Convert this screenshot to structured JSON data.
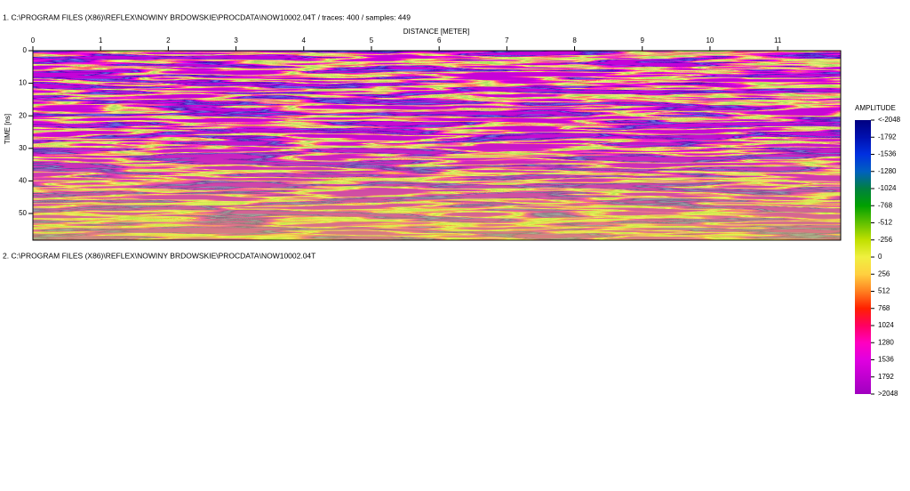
{
  "panels": [
    {
      "header": "1. C:\\PROGRAM FILES (X86)\\REFLEX\\NOWINY BRDOWSKIE\\PROCDATA\\NOW10002.04T / traces: 400 / samples: 449"
    },
    {
      "header": "2. C:\\PROGRAM FILES (X86)\\REFLEX\\NOWINY BRDOWSKIE\\PROCDATA\\NOW10002.04T"
    }
  ],
  "chart_data": {
    "type": "heatmap",
    "xlabel": "DISTANCE [METER]",
    "ylabel": "TIME [ns]",
    "xlim": [
      0,
      11.93
    ],
    "xticks": [
      0,
      1,
      2,
      3,
      4,
      5,
      6,
      7,
      8,
      9,
      10,
      11
    ],
    "ylim": [
      0,
      58.2
    ],
    "yticks": [
      0,
      10,
      20,
      30,
      40,
      50
    ],
    "colorbar": {
      "title": "AMPLITUDE",
      "ticks": [
        {
          "value": -2048,
          "label": "<-2048"
        },
        -1792,
        -1536,
        -1280,
        -1024,
        -768,
        -512,
        -256,
        0,
        256,
        512,
        768,
        1024,
        1280,
        1536,
        1792,
        {
          "value": 2048,
          "label": ">2048"
        }
      ],
      "colors": [
        "#000080",
        "#0010b0",
        "#0030e0",
        "#0060c0",
        "#008040",
        "#00a000",
        "#60c000",
        "#c0e000",
        "#f0f040",
        "#ffd040",
        "#ff8020",
        "#ff2000",
        "#ff0060",
        "#ff00c0",
        "#e000e0",
        "#c000d0",
        "#a000c0"
      ]
    }
  }
}
